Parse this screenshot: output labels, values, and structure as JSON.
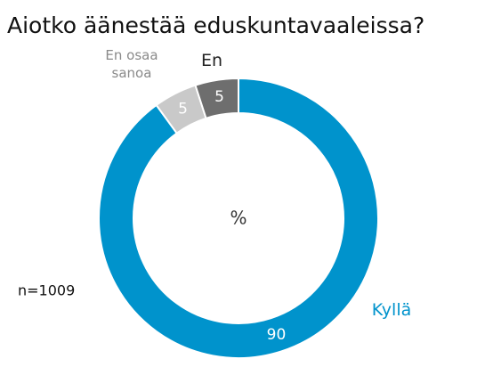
{
  "chart_data": {
    "type": "donut",
    "title": "Aiotko äänestää eduskuntavaaleissa?",
    "center_label": "%",
    "note": "n=1009",
    "categories": [
      "Kyllä",
      "En osaa sanoa",
      "En"
    ],
    "values": [
      90,
      5,
      5
    ],
    "colors": [
      "#0093cc",
      "#c9c9c9",
      "#6e6e6e"
    ]
  }
}
